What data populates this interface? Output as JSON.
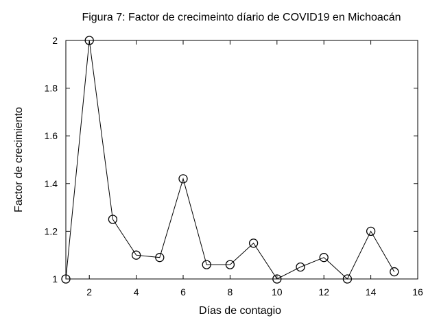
{
  "chart_data": {
    "type": "line",
    "title": "Figura 7: Factor de crecimeinto díario de COVID19 en Michoacán",
    "xlabel": "Días de contagio",
    "ylabel": "Factor de crecimiento",
    "xlim": [
      1,
      16
    ],
    "ylim": [
      1,
      2
    ],
    "xticks": [
      2,
      4,
      6,
      8,
      10,
      12,
      14,
      16
    ],
    "yticks": [
      1,
      1.2,
      1.4,
      1.6,
      1.8,
      2
    ],
    "ytick_labels": [
      "1",
      "1.2",
      "1.4",
      "1.6",
      "1.8",
      "2"
    ],
    "grid": false,
    "marker": "open-circle",
    "color": "#000000",
    "x": [
      1,
      2,
      3,
      4,
      5,
      6,
      7,
      8,
      9,
      10,
      11,
      12,
      13,
      14,
      15
    ],
    "y": [
      1.0,
      2.0,
      1.25,
      1.1,
      1.09,
      1.42,
      1.06,
      1.06,
      1.15,
      1.0,
      1.05,
      1.09,
      1.0,
      1.2,
      1.03
    ]
  }
}
